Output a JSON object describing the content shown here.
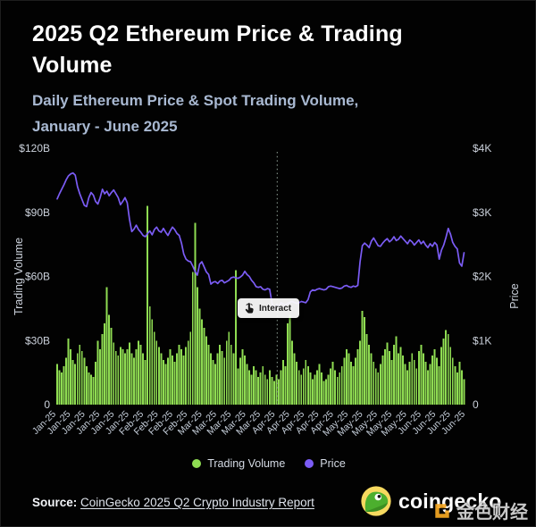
{
  "header": {
    "title_line1": "2025 Q2 Ethereum Price & Trading",
    "title_line2": "Volume",
    "subtitle_line1": "Daily Ethereum Price & Spot Trading Volume,",
    "subtitle_line2": "January - June 2025"
  },
  "chart_data": {
    "type": "bar",
    "overlay_type": "line",
    "title": "2025 Q2 Ethereum Price & Trading Volume",
    "subtitle": "Daily Ethereum Price & Spot Trading Volume, January - June 2025",
    "x_unit": "day",
    "x_range": "January - June 2025",
    "n_points": 181,
    "grid": false,
    "legend_position": "bottom-center",
    "x_tick_labels": [
      "Jan-25",
      "Jan-25",
      "Jan-25",
      "Jan-25",
      "Jan-25",
      "Jan-25",
      "Feb-25",
      "Feb-25",
      "Feb-25",
      "Feb-25",
      "Mar-25",
      "Mar-25",
      "Mar-25",
      "Mar-25",
      "Mar-25",
      "Apr-25",
      "Apr-25",
      "Apr-25",
      "Apr-25",
      "Apr-25",
      "May-25",
      "May-25",
      "May-25",
      "May-25",
      "May-25",
      "Jun-25",
      "Jun-25",
      "Jun-25",
      "Jun-25"
    ],
    "left_axis": {
      "label": "Trading Volume",
      "ticks": [
        "$120B",
        "$90B",
        "$60B",
        "$30B",
        "0"
      ],
      "min": 0,
      "max": 120,
      "unit": "billion USD"
    },
    "right_axis": {
      "label": "Price",
      "ticks": [
        "$4K",
        "$3K",
        "$2K",
        "$1K",
        "0"
      ],
      "min": 0,
      "max": 4000,
      "unit": "USD"
    },
    "divider": {
      "style": "dotted-vertical",
      "x_fraction": 0.54
    },
    "series": [
      {
        "name": "Trading Volume",
        "type": "bar",
        "axis": "left",
        "color": "#8fdc52",
        "values": [
          19,
          16,
          15,
          18,
          22,
          31,
          26,
          21,
          19,
          24,
          28,
          25,
          22,
          18,
          15,
          14,
          13,
          20,
          30,
          26,
          33,
          38,
          55,
          42,
          36,
          29,
          25,
          23,
          27,
          26,
          24,
          26,
          29,
          24,
          22,
          26,
          30,
          28,
          24,
          21,
          93,
          46,
          40,
          34,
          30,
          27,
          24,
          21,
          19,
          22,
          26,
          23,
          20,
          24,
          28,
          26,
          23,
          27,
          30,
          34,
          62,
          85,
          55,
          45,
          40,
          36,
          32,
          28,
          24,
          21,
          19,
          24,
          28,
          25,
          22,
          30,
          34,
          28,
          24,
          63,
          17,
          22,
          26,
          23,
          19,
          16,
          14,
          18,
          16,
          13,
          15,
          18,
          14,
          12,
          16,
          13,
          11,
          14,
          12,
          16,
          21,
          18,
          38,
          42,
          30,
          24,
          20,
          16,
          14,
          17,
          21,
          18,
          15,
          12,
          14,
          16,
          19,
          15,
          11,
          12,
          14,
          17,
          20,
          16,
          13,
          15,
          18,
          22,
          26,
          24,
          20,
          18,
          22,
          26,
          30,
          44,
          41,
          33,
          28,
          24,
          20,
          17,
          15,
          19,
          23,
          26,
          29,
          25,
          21,
          28,
          32,
          24,
          27,
          23,
          19,
          16,
          20,
          24,
          21,
          17,
          25,
          28,
          24,
          20,
          16,
          19,
          23,
          26,
          22,
          18,
          27,
          31,
          35,
          33,
          27,
          22,
          18,
          15,
          20,
          16,
          12
        ]
      },
      {
        "name": "Price",
        "type": "line",
        "axis": "right",
        "color": "#7b5cf5",
        "values": [
          3210,
          3290,
          3360,
          3430,
          3510,
          3570,
          3600,
          3615,
          3580,
          3400,
          3290,
          3200,
          3110,
          3090,
          3230,
          3310,
          3270,
          3170,
          3130,
          3230,
          3360,
          3290,
          3330,
          3260,
          3310,
          3350,
          3290,
          3230,
          3120,
          3170,
          3230,
          3150,
          2890,
          2700,
          2740,
          2800,
          2730,
          2690,
          2640,
          2620,
          2670,
          2710,
          2650,
          2730,
          2770,
          2710,
          2690,
          2750,
          2690,
          2640,
          2710,
          2770,
          2730,
          2670,
          2640,
          2520,
          2350,
          2270,
          2240,
          2230,
          2160,
          2080,
          2020,
          2190,
          2230,
          2150,
          2070,
          2030,
          1880,
          1910,
          1920,
          1890,
          1930,
          1940,
          1900,
          1920,
          1940,
          1980,
          1990,
          1980,
          1970,
          1990,
          2020,
          2080,
          2030,
          2000,
          1940,
          1900,
          1840,
          1830,
          1840,
          1800,
          1790,
          1810,
          1800,
          1590,
          1480,
          1560,
          1530,
          1590,
          1570,
          1550,
          1580,
          1600,
          1610,
          1590,
          1580,
          1590,
          1610,
          1600,
          1590,
          1640,
          1760,
          1790,
          1780,
          1800,
          1810,
          1800,
          1790,
          1800,
          1840,
          1850,
          1840,
          1830,
          1820,
          1810,
          1820,
          1850,
          1860,
          1840,
          1830,
          1850,
          1840,
          1860,
          2230,
          2480,
          2520,
          2490,
          2450,
          2550,
          2600,
          2540,
          2480,
          2470,
          2520,
          2560,
          2590,
          2540,
          2570,
          2620,
          2560,
          2580,
          2630,
          2590,
          2550,
          2510,
          2570,
          2540,
          2490,
          2530,
          2570,
          2510,
          2550,
          2490,
          2450,
          2510,
          2470,
          2530,
          2490,
          2270,
          2410,
          2490,
          2610,
          2750,
          2660,
          2530,
          2470,
          2430,
          2210,
          2160,
          2370
        ]
      }
    ]
  },
  "interact_button": {
    "label": "Interact"
  },
  "legend": {
    "items": [
      {
        "label": "Trading Volume",
        "color": "#8fdc52"
      },
      {
        "label": "Price",
        "color": "#7b5cf5"
      }
    ]
  },
  "footer": {
    "source_prefix": "Source:",
    "source_link_text": "CoinGecko 2025 Q2 Crypto Industry Report",
    "brand_text": "coingecko",
    "watermark_text": "金色财经"
  },
  "colors": {
    "background": "#000000",
    "bar": "#8fdc52",
    "price_line": "#7b5cf5",
    "title": "#ffffff",
    "subtitle": "#a9b9d2",
    "axis_text": "#ccd2dc",
    "divider": "#94a69b",
    "gecko_yellow": "#f6d95f",
    "gecko_green": "#4caf2e",
    "watermark_orange": "#f7a823"
  }
}
